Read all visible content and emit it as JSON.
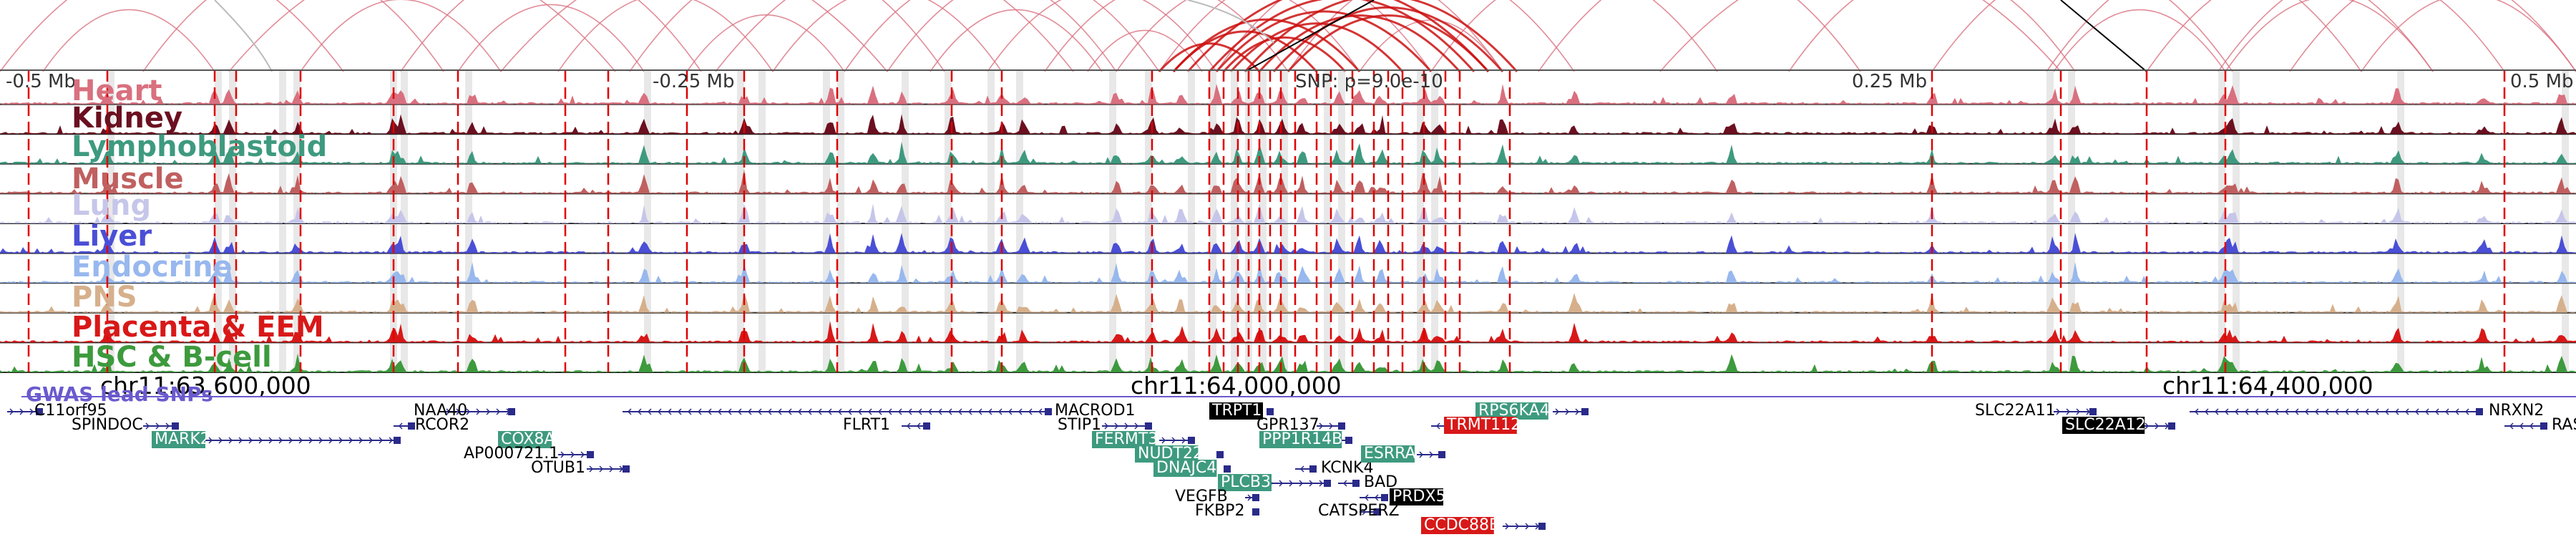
{
  "ruler": {
    "ticks": [
      "-0.5 Mb",
      "-0.25 Mb",
      "0.25 Mb",
      "0.5 Mb"
    ],
    "snp_label": "SNP: p=9.0e-10"
  },
  "tracks": [
    {
      "name": "Heart",
      "color": "#d9707f"
    },
    {
      "name": "Kidney",
      "color": "#6b1020"
    },
    {
      "name": "Lymphoblastoid",
      "color": "#3e9a7f"
    },
    {
      "name": "Muscle",
      "color": "#c06060"
    },
    {
      "name": "Lung",
      "color": "#c6c6ea"
    },
    {
      "name": "Liver",
      "color": "#4a4fd6"
    },
    {
      "name": "Endocrine",
      "color": "#98b8ee"
    },
    {
      "name": "PNS",
      "color": "#d6b08c"
    },
    {
      "name": "Placenta & EEM",
      "color": "#d81818"
    },
    {
      "name": "HSC & B-cell",
      "color": "#3d9a3d"
    }
  ],
  "coordinates": [
    "chr11:63,600,000",
    "chr11:64,000,000",
    "chr11:64,400,000"
  ],
  "gwas_label": "GWAS lead SNPs",
  "genes": [
    {
      "name": "C11orf95",
      "style": "plain"
    },
    {
      "name": "SPINDOC",
      "style": "plain"
    },
    {
      "name": "MARK2",
      "style": "teal"
    },
    {
      "name": "NAA40",
      "style": "plain"
    },
    {
      "name": "RCOR2",
      "style": "plain"
    },
    {
      "name": "COX8A",
      "style": "teal"
    },
    {
      "name": "AP000721.1",
      "style": "plain"
    },
    {
      "name": "OTUB1",
      "style": "plain"
    },
    {
      "name": "FLRT1",
      "style": "plain"
    },
    {
      "name": "MACROD1",
      "style": "plain"
    },
    {
      "name": "STIP1",
      "style": "plain"
    },
    {
      "name": "FERMT3",
      "style": "teal"
    },
    {
      "name": "NUDT22",
      "style": "teal"
    },
    {
      "name": "DNAJC4",
      "style": "teal"
    },
    {
      "name": "TRPT1",
      "style": "black"
    },
    {
      "name": "GPR137",
      "style": "plain"
    },
    {
      "name": "PPP1R14B",
      "style": "teal"
    },
    {
      "name": "PLCB3",
      "style": "teal"
    },
    {
      "name": "VEGFB",
      "style": "plain"
    },
    {
      "name": "FKBP2",
      "style": "plain"
    },
    {
      "name": "KCNK4",
      "style": "plain"
    },
    {
      "name": "BAD",
      "style": "plain"
    },
    {
      "name": "CATSPERZ",
      "style": "plain"
    },
    {
      "name": "ESRRA",
      "style": "teal"
    },
    {
      "name": "PRDX5",
      "style": "black"
    },
    {
      "name": "CCDC88B",
      "style": "red"
    },
    {
      "name": "RPS6KA4",
      "style": "teal"
    },
    {
      "name": "TRMT112",
      "style": "red"
    },
    {
      "name": "SLC22A11",
      "style": "plain"
    },
    {
      "name": "SLC22A12",
      "style": "black"
    },
    {
      "name": "NRXN2",
      "style": "plain"
    },
    {
      "name": "RAS",
      "style": "plain"
    }
  ],
  "colors": {
    "arc": "#d9707f",
    "arc_strong": "#cc1111",
    "snp_line": "#e00000",
    "gene_line": "#2a2a8a",
    "teal_box": "#3e9a7f",
    "red_box": "#d81818",
    "black_box": "#000000"
  }
}
